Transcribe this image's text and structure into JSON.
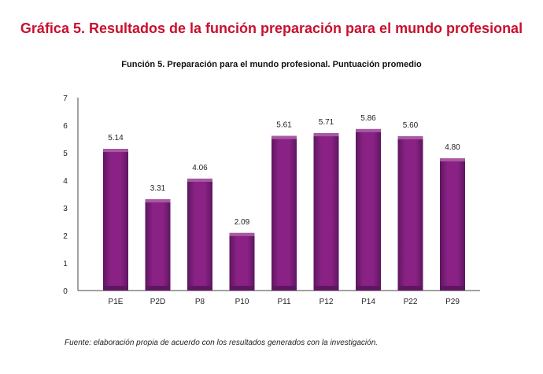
{
  "figure_title": "Gráfica 5. Resultados de la función preparación para el mundo profesional",
  "source_note": "Fuente: elaboración propia de acuerdo con los resultados generados con la investigación.",
  "colors": {
    "title": "#c8102e",
    "bar": "#8a2285",
    "bar_top": "#a65aa1",
    "bar_base": "#5e1660",
    "axis": "#444444"
  },
  "chart_data": {
    "type": "bar",
    "title": "Función 5. Preparación para el mundo profesional. Puntuación promedio",
    "xlabel": "",
    "ylabel": "",
    "ylim": [
      0,
      7
    ],
    "yticks": [
      0,
      1,
      2,
      3,
      4,
      5,
      6,
      7
    ],
    "grid": false,
    "categories": [
      "P1E",
      "P2D",
      "P8",
      "P10",
      "P11",
      "P12",
      "P14",
      "P22",
      "P29"
    ],
    "values": [
      5.14,
      3.31,
      4.06,
      2.09,
      5.61,
      5.71,
      5.86,
      5.6,
      4.8
    ],
    "data_labels": [
      "5.14",
      "3.31",
      "4.06",
      "2.09",
      "5.61",
      "5.71",
      "5.86",
      "5.60",
      "4.80"
    ]
  }
}
